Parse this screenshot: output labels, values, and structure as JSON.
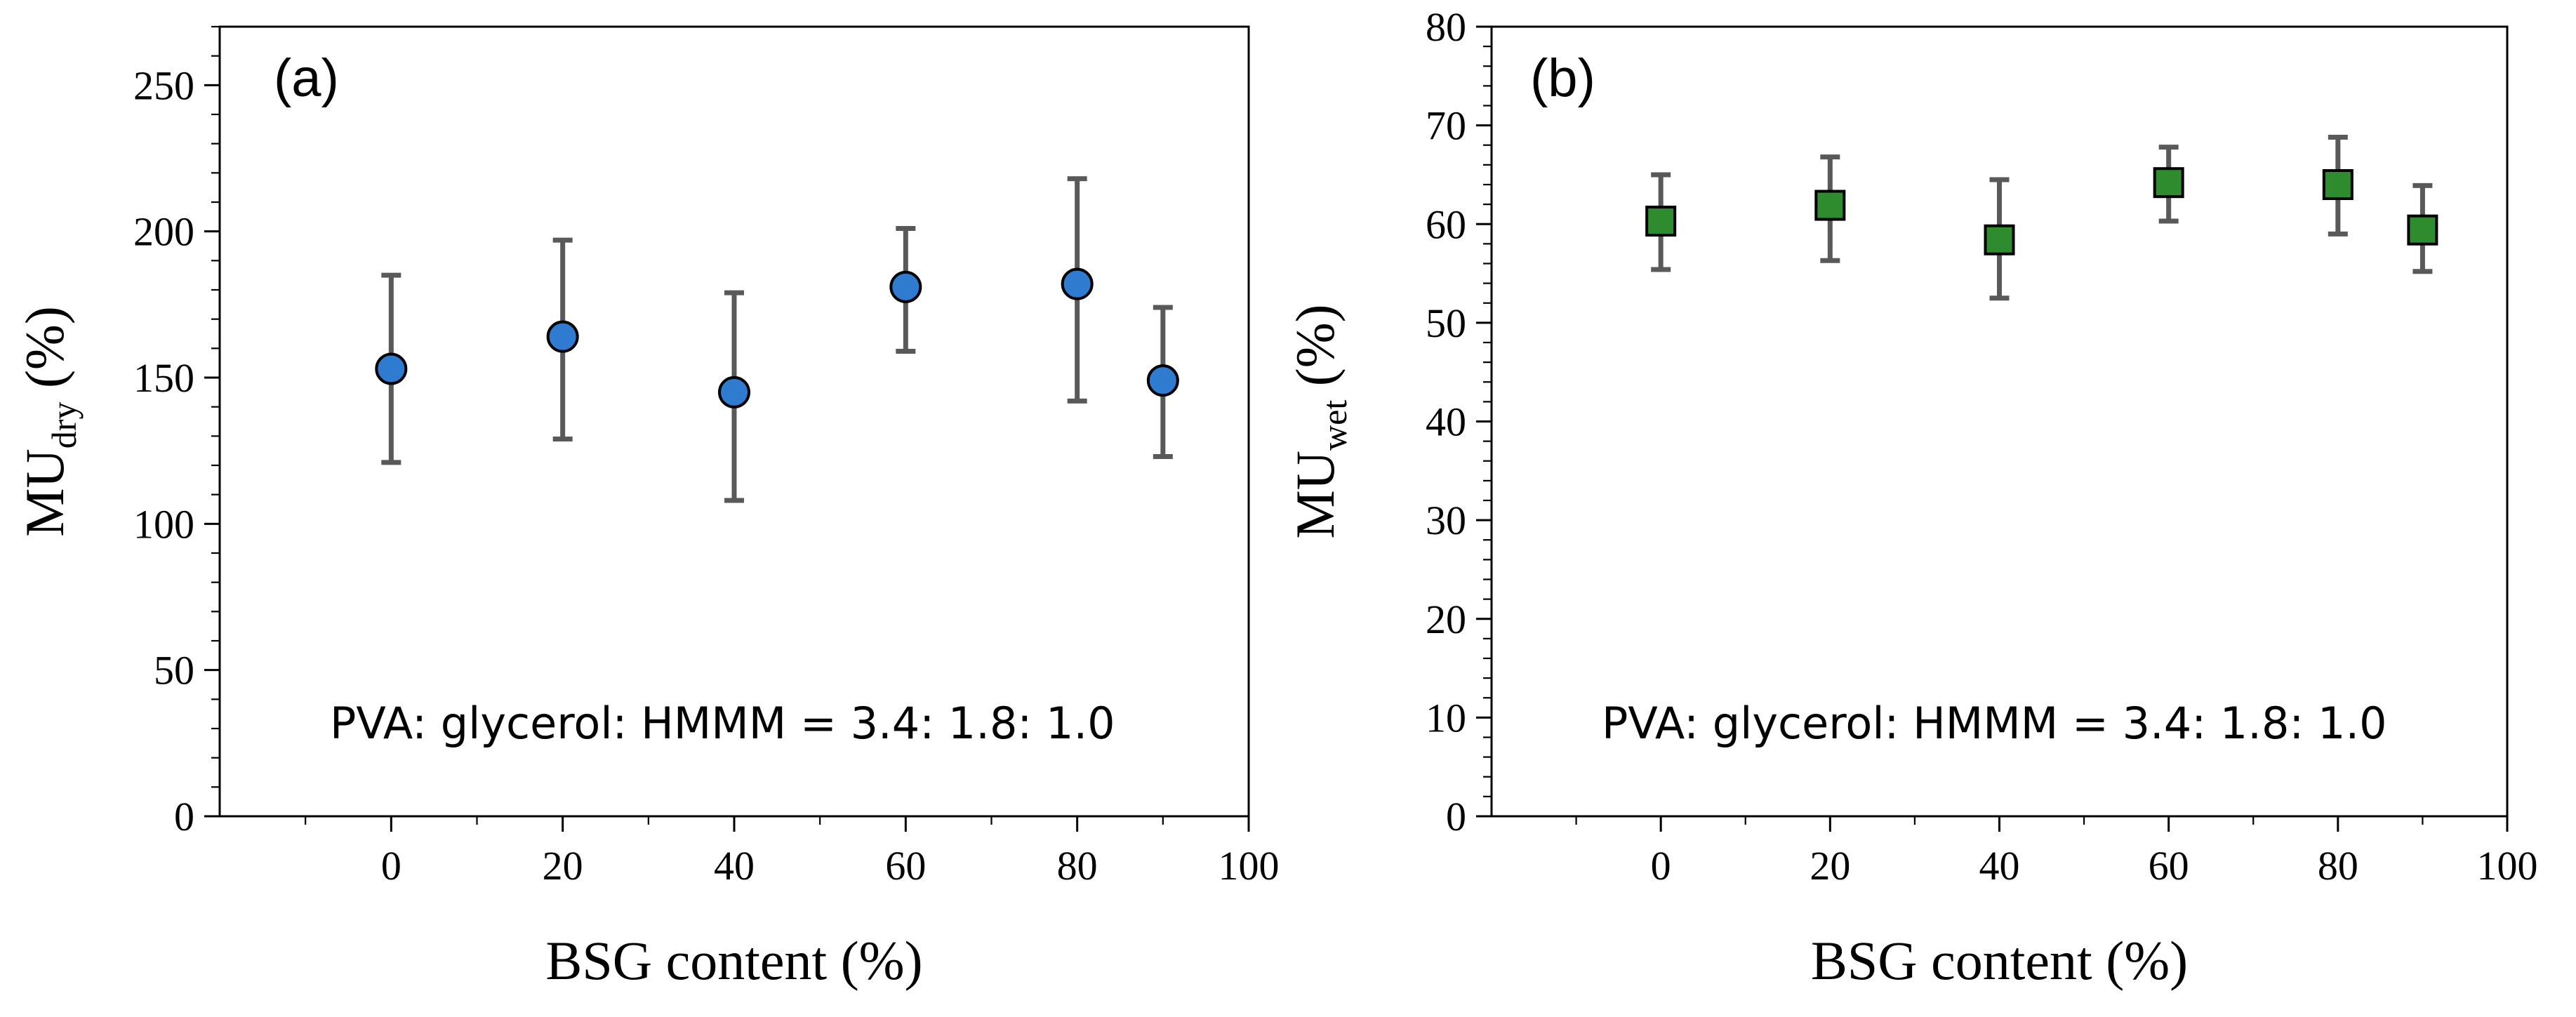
{
  "chart_data": [
    {
      "type": "scatter",
      "panel_label": "(a)",
      "xlabel": "BSG content (%)",
      "ylabel": {
        "main": "MU",
        "subscript": "dry",
        "unit": "(%)"
      },
      "xlim": [
        -20,
        100
      ],
      "ylim": [
        0,
        270
      ],
      "x_ticks": [
        0,
        20,
        40,
        60,
        80,
        100
      ],
      "y_ticks": [
        0,
        50,
        100,
        150,
        200,
        250
      ],
      "x_minor_step": 10,
      "y_minor_step": 10,
      "annotation": "PVA: glycerol: HMMM = 3.4: 1.8: 1.0",
      "grid": false,
      "series": [
        {
          "name": "MU_dry",
          "marker": "circle",
          "color": "#2f7bd0",
          "errorbar_color": "#595959",
          "x": [
            0,
            20,
            40,
            60,
            80,
            90
          ],
          "y": [
            153,
            164,
            145,
            181,
            182,
            149
          ],
          "y_err_low": [
            121,
            129,
            108,
            159,
            142,
            123
          ],
          "y_err_high": [
            185,
            197,
            179,
            201,
            218,
            174
          ]
        }
      ]
    },
    {
      "type": "scatter",
      "panel_label": "(b)",
      "xlabel": "BSG content (%)",
      "ylabel": {
        "main": "MU",
        "subscript": "wet",
        "unit": "(%)"
      },
      "xlim": [
        -20,
        100
      ],
      "ylim": [
        0,
        80
      ],
      "x_ticks": [
        0,
        20,
        40,
        60,
        80,
        100
      ],
      "y_ticks": [
        0,
        10,
        20,
        30,
        40,
        50,
        60,
        70,
        80
      ],
      "x_minor_step": 10,
      "y_minor_step": 2,
      "annotation": "PVA: glycerol: HMMM = 3.4: 1.8: 1.0",
      "grid": false,
      "series": [
        {
          "name": "MU_wet",
          "marker": "square",
          "color": "#2e8b2e",
          "errorbar_color": "#595959",
          "x": [
            0,
            20,
            40,
            60,
            80,
            90
          ],
          "y": [
            60.3,
            61.9,
            58.4,
            64.2,
            64.0,
            59.4
          ],
          "y_err_low": [
            55.4,
            56.3,
            52.5,
            60.3,
            59.0,
            55.2
          ],
          "y_err_high": [
            65.0,
            66.8,
            64.5,
            67.8,
            68.8,
            63.9
          ]
        }
      ]
    }
  ]
}
